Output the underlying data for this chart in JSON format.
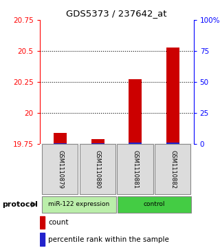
{
  "title": "GDS5373 / 237642_at",
  "samples": [
    "GSM1110879",
    "GSM1110880",
    "GSM1110881",
    "GSM1110882"
  ],
  "group_labels": [
    "miR-122 expression",
    "control"
  ],
  "group_split": 2,
  "group_color_left": "#BBEEAA",
  "group_color_right": "#44CC44",
  "red_values": [
    19.84,
    19.79,
    20.27,
    20.53
  ],
  "blue_values": [
    19.756,
    19.756,
    19.762,
    19.762
  ],
  "y_min": 19.75,
  "y_max": 20.75,
  "y_ticks_left": [
    19.75,
    20.0,
    20.25,
    20.5,
    20.75
  ],
  "y_ticks_right": [
    0,
    25,
    50,
    75,
    100
  ],
  "y_ticks_left_labels": [
    "19.75",
    "20",
    "20.25",
    "20.5",
    "20.75"
  ],
  "y_ticks_right_labels": [
    "0",
    "25",
    "50",
    "75",
    "100%"
  ],
  "dotted_lines": [
    20.0,
    20.25,
    20.5
  ],
  "bar_color_red": "#CC0000",
  "bar_color_blue": "#2222CC",
  "legend_count": "count",
  "legend_percentile": "percentile rank within the sample",
  "protocol_label": "protocol",
  "bar_width": 0.35,
  "bg_color": "#DCDCDC"
}
